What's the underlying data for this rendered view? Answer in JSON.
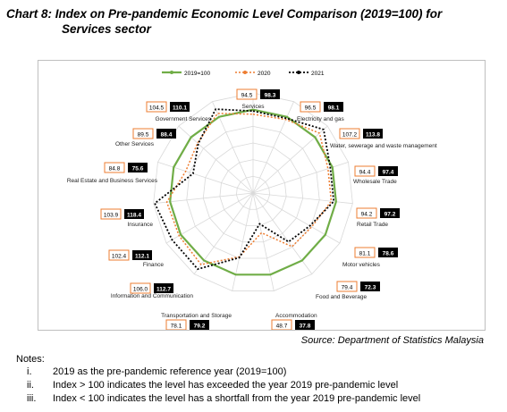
{
  "title": {
    "line1": "Chart 8: Index on Pre-pandemic Economic Level Comparison (2019=100) for",
    "line2": "Services sector"
  },
  "source": "Source: Department of Statistics Malaysia",
  "notes": {
    "heading": "Notes:",
    "items": [
      {
        "num": "i.",
        "text": "2019 as the pre-pandemic reference year (2019=100)"
      },
      {
        "num": "ii.",
        "text": "Index > 100 indicates the level has exceeded the year 2019 pre-pandemic level"
      },
      {
        "num": "iii.",
        "text": "Index < 100 indicates the level has a shortfall from the year 2019 pre-pandemic level"
      }
    ]
  },
  "colors": {
    "s2019": "#70ad47",
    "s2020": "#ed7d31",
    "s2021": "#000000",
    "grid": "#d9d9d9"
  },
  "chart_data": {
    "type": "radar",
    "categories": [
      "Services",
      "Electricity and gas",
      "Water, sewerage and waste management",
      "Wholesale Trade",
      "Retail Trade",
      "Motor vehicles",
      "Food and Beverage",
      "Accommodation",
      "Transportation and Storage",
      "Information and Communication",
      "Finance",
      "Insurance",
      "Real Estate and Business Services",
      "Other Services",
      "Government Services"
    ],
    "series": [
      {
        "name": "2019=100",
        "values": [
          100,
          100,
          100,
          100,
          100,
          100,
          100,
          100,
          100,
          100,
          100,
          100,
          100,
          100,
          100
        ]
      },
      {
        "name": "2020",
        "values": [
          94.5,
          96.5,
          107.2,
          94.4,
          94.2,
          81.1,
          79.4,
          48.7,
          78.1,
          106.0,
          102.4,
          103.9,
          84.8,
          89.5,
          104.5
        ]
      },
      {
        "name": "2021",
        "values": [
          98.3,
          98.1,
          113.8,
          97.4,
          97.2,
          78.6,
          72.3,
          37.8,
          79.2,
          112.7,
          112.1,
          118.4,
          75.6,
          88.4,
          110.1
        ]
      }
    ],
    "value_labels_2020": [
      "94.5",
      "96.5",
      "107.2",
      "94.4",
      "94.2",
      "81.1",
      "79.4",
      "48.7",
      "78.1",
      "106.0",
      "102.4",
      "103.9",
      "84.8",
      "89.5",
      "104.5"
    ],
    "value_labels_2021": [
      "98.3",
      "98.1",
      "113.8",
      "97.4",
      "97.2",
      "78.6",
      "72.3",
      "37.8",
      "79.2",
      "112.7",
      "112.1",
      "118.4",
      "75.6",
      "88.4",
      "110.1"
    ],
    "rmax": 120,
    "grid_levels": 6,
    "legend": "top"
  }
}
